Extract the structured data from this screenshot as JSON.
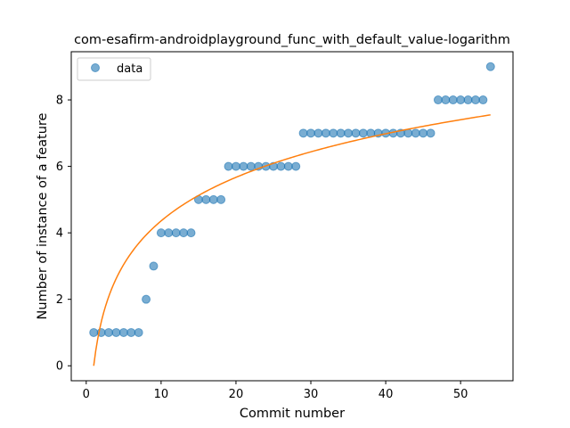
{
  "chart_data": {
    "type": "scatter",
    "title": "com-esafirm-androidplayground_func_with_default_value-logarithm",
    "xlabel": "Commit number",
    "ylabel": "Number of instance of a feature",
    "xlim": [
      -2,
      57
    ],
    "ylim": [
      -0.45,
      9.45
    ],
    "xticks": [
      0,
      10,
      20,
      30,
      40,
      50
    ],
    "yticks": [
      0,
      2,
      4,
      6,
      8
    ],
    "grid": false,
    "legend_position": "upper-left",
    "series": [
      {
        "name": "data",
        "kind": "scatter",
        "color": "#1f77b4",
        "x": [
          1,
          2,
          3,
          4,
          5,
          6,
          7,
          8,
          9,
          10,
          11,
          12,
          13,
          14,
          15,
          16,
          17,
          18,
          19,
          20,
          21,
          22,
          23,
          24,
          25,
          26,
          27,
          28,
          29,
          30,
          31,
          32,
          33,
          34,
          35,
          36,
          37,
          38,
          39,
          40,
          41,
          42,
          43,
          44,
          45,
          46,
          47,
          48,
          49,
          50,
          51,
          52,
          53,
          54
        ],
        "y": [
          1,
          1,
          1,
          1,
          1,
          1,
          1,
          2,
          3,
          4,
          4,
          4,
          4,
          4,
          5,
          5,
          5,
          5,
          6,
          6,
          6,
          6,
          6,
          6,
          6,
          6,
          6,
          6,
          7,
          7,
          7,
          7,
          7,
          7,
          7,
          7,
          7,
          7,
          7,
          7,
          7,
          7,
          7,
          7,
          7,
          7,
          8,
          8,
          8,
          8,
          8,
          8,
          8,
          9
        ]
      },
      {
        "kind": "line",
        "color": "#ff7f0e",
        "fit": "logarithm",
        "x_range": [
          1,
          54
        ],
        "y_at_x1": 0.0,
        "y_at_x54": 7.55
      }
    ]
  }
}
